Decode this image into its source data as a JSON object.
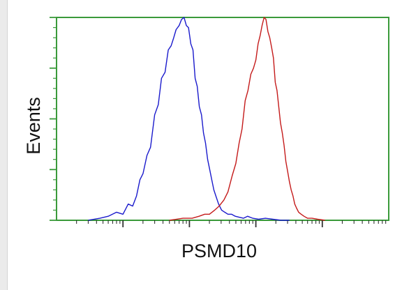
{
  "chart_data": {
    "type": "line",
    "title": "",
    "xlabel": "PSMD10",
    "ylabel": "Events",
    "x_scale": "log",
    "xlim": [
      0.1,
      10000
    ],
    "ylim": [
      0,
      1.0
    ],
    "grid": false,
    "legend": "none",
    "x_decade_ticks": [
      1,
      10,
      100,
      1000
    ],
    "y_major_ticks": [
      0,
      0.25,
      0.5,
      0.75,
      1.0
    ],
    "series": [
      {
        "color": "#1a1acc",
        "x": [
          0.3,
          0.45,
          0.6,
          0.8,
          1.0,
          1.2,
          1.4,
          1.6,
          1.8,
          2.0,
          2.3,
          2.6,
          3.0,
          3.4,
          3.8,
          4.3,
          4.8,
          5.3,
          5.8,
          6.3,
          7.0,
          7.6,
          8.3,
          9.0,
          9.7,
          10.5,
          11.3,
          12.2,
          13.1,
          14.1,
          15.2,
          16.3,
          17.5,
          18.8,
          20.2,
          21.7,
          23.3,
          25.0,
          27.5,
          30.5,
          34,
          38,
          43,
          49,
          56,
          65,
          75,
          90,
          110,
          140,
          180,
          240,
          320
        ],
        "y": [
          0.0,
          0.01,
          0.02,
          0.04,
          0.03,
          0.08,
          0.07,
          0.12,
          0.2,
          0.23,
          0.32,
          0.36,
          0.52,
          0.57,
          0.7,
          0.73,
          0.84,
          0.86,
          0.9,
          0.94,
          0.96,
          0.99,
          1.0,
          0.96,
          0.95,
          0.87,
          0.84,
          0.7,
          0.66,
          0.56,
          0.52,
          0.43,
          0.38,
          0.3,
          0.25,
          0.2,
          0.15,
          0.12,
          0.08,
          0.05,
          0.04,
          0.03,
          0.03,
          0.02,
          0.015,
          0.01,
          0.02,
          0.01,
          0.005,
          0.01,
          0.005,
          0.0,
          0.0
        ]
      },
      {
        "color": "#c41a1a",
        "x": [
          5,
          8,
          11,
          14,
          17,
          20,
          24,
          28,
          33,
          38,
          44,
          50,
          56,
          62,
          69,
          76,
          84,
          92,
          100,
          108,
          116,
          124,
          133,
          142,
          152,
          162,
          173,
          184,
          196,
          208,
          221,
          235,
          250,
          266,
          283,
          301,
          320,
          340,
          362,
          385,
          410,
          440,
          480,
          530,
          600,
          700,
          850,
          1100
        ],
        "y": [
          0.0,
          0.01,
          0.01,
          0.02,
          0.03,
          0.03,
          0.05,
          0.07,
          0.1,
          0.14,
          0.22,
          0.28,
          0.38,
          0.45,
          0.59,
          0.64,
          0.72,
          0.75,
          0.79,
          0.87,
          0.91,
          0.96,
          1.0,
          0.99,
          0.93,
          0.9,
          0.85,
          0.8,
          0.68,
          0.64,
          0.56,
          0.48,
          0.43,
          0.37,
          0.29,
          0.24,
          0.19,
          0.15,
          0.12,
          0.08,
          0.06,
          0.04,
          0.03,
          0.02,
          0.01,
          0.01,
          0.005,
          0.0
        ]
      }
    ]
  }
}
